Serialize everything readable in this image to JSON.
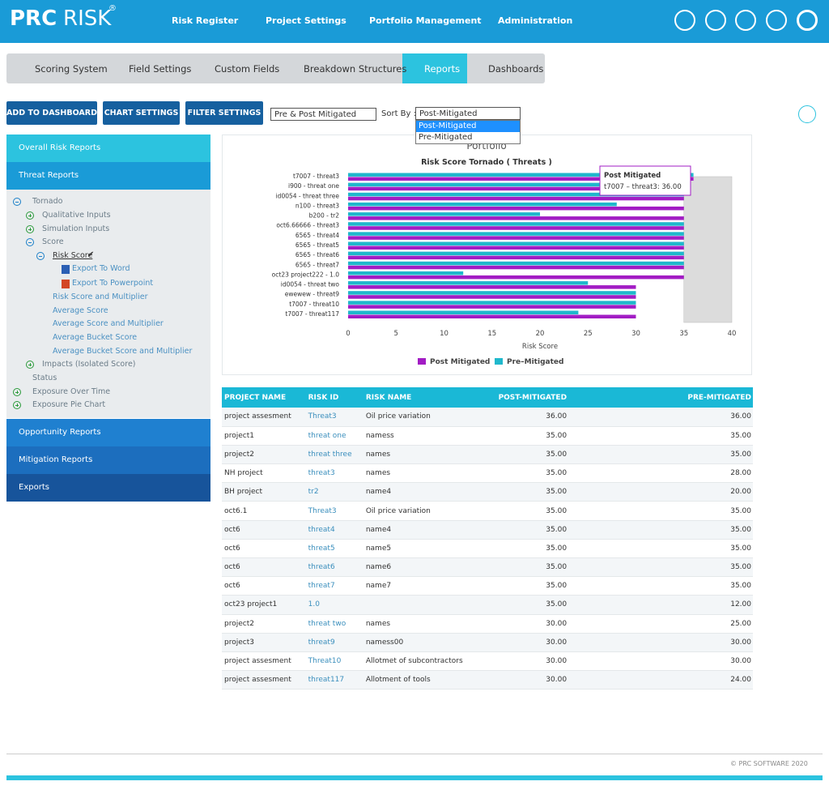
{
  "header": {
    "logo_a": "PRC",
    "logo_b": "RISK",
    "logo_mark": "®",
    "nav": [
      "Risk Register",
      "Project Settings",
      "Portfolio Management",
      "Administration"
    ]
  },
  "tabs": [
    "Scoring System",
    "Field Settings",
    "Custom Fields",
    "Breakdown Structures",
    "Reports",
    "Dashboards"
  ],
  "toolbar": {
    "buttons": [
      "ADD TO DASHBOARD",
      "CHART SETTINGS",
      "FILTER SETTINGS"
    ],
    "mode_select": "Pre & Post Mitigated",
    "sort_label": "Sort By :",
    "sort_select": "Post-Mitigated",
    "sort_options": [
      "Post-Mitigated",
      "Pre-Mitigated"
    ]
  },
  "sidebar": {
    "sections_top": [
      "Overall Risk Reports",
      "Threat Reports"
    ],
    "tree": [
      "Tornado",
      "Qualitative Inputs",
      "Simulation Inputs",
      "Score",
      "Risk Score",
      "Export To Word",
      "Export To Powerpoint",
      "Risk Score and Multiplier",
      "Average Score",
      "Average Score and Multiplier",
      "Average Bucket Score",
      "Average Bucket Score and Multiplier",
      "Impacts (Isolated Score)",
      "Status",
      "Exposure Over Time",
      "Exposure Pie Chart"
    ],
    "sections_bottom": [
      "Opportunity Reports",
      "Mitigation Reports",
      "Exports"
    ]
  },
  "chart_data": {
    "type": "hbar",
    "subtitle": "Portfolio",
    "title": "Risk Score Tornado ( Threats )",
    "x_label": "Risk Score",
    "categories": [
      "t7007 - threat3",
      "i900 - threat one",
      "id0054 - threat three",
      "n100 - threat3",
      "b200 - tr2",
      "oct6.66666 - threat3",
      "6565 - threat4",
      "6565 - threat5",
      "6565 - threat6",
      "6565 - threat7",
      "oct23 project222 - 1.0",
      "id0054 - threat two",
      "ewewew - threat9",
      "t7007 - threat10",
      "t7007 - threat117"
    ],
    "series": [
      {
        "name": "Post Mitigated",
        "color": "#a21cc4",
        "values": [
          36,
          35,
          35,
          35,
          35,
          35,
          35,
          35,
          35,
          35,
          35,
          30,
          30,
          30,
          30
        ]
      },
      {
        "name": "Pre–Mitigated",
        "color": "#1fb8cc",
        "values": [
          36,
          35,
          35,
          28,
          20,
          35,
          35,
          35,
          35,
          35,
          12,
          25,
          30,
          30,
          24
        ]
      }
    ],
    "xlim": [
      0,
      40
    ],
    "xticks": [
      0,
      5,
      10,
      15,
      20,
      25,
      30,
      35,
      40
    ],
    "plot_band": {
      "from": 35,
      "to": 40,
      "color": "#dcdcdc"
    },
    "tooltip": {
      "title": "Post Mitigated",
      "text": "t7007 – threat3: 36.00"
    }
  },
  "table": {
    "columns": [
      "PROJECT NAME",
      "RISK ID",
      "RISK NAME",
      "POST-MITIGATED",
      "PRE-MITIGATED"
    ],
    "rows": [
      [
        "project assesment",
        "Threat3",
        "Oil price variation",
        "36.00",
        "36.00"
      ],
      [
        "project1",
        "threat one",
        "namess",
        "35.00",
        "35.00"
      ],
      [
        "project2",
        "threat three",
        "names",
        "35.00",
        "35.00"
      ],
      [
        "NH project",
        "threat3",
        "names",
        "35.00",
        "28.00"
      ],
      [
        "BH project",
        "tr2",
        "name4",
        "35.00",
        "20.00"
      ],
      [
        "oct6.1",
        "Threat3",
        "Oil price variation",
        "35.00",
        "35.00"
      ],
      [
        "oct6",
        "threat4",
        "name4",
        "35.00",
        "35.00"
      ],
      [
        "oct6",
        "threat5",
        "name5",
        "35.00",
        "35.00"
      ],
      [
        "oct6",
        "threat6",
        "name6",
        "35.00",
        "35.00"
      ],
      [
        "oct6",
        "threat7",
        "name7",
        "35.00",
        "35.00"
      ],
      [
        "oct23 project1",
        "1.0",
        "",
        "35.00",
        "12.00"
      ],
      [
        "project2",
        "threat two",
        "names",
        "30.00",
        "25.00"
      ],
      [
        "project3",
        "threat9",
        "namess00",
        "30.00",
        "30.00"
      ],
      [
        "project assesment",
        "Threat10",
        "Allotmet of subcontractors",
        "30.00",
        "30.00"
      ],
      [
        "project assesment",
        "threat117",
        "Allotment of tools",
        "30.00",
        "24.00"
      ]
    ]
  },
  "footer": {
    "copyright": "© PRC SOFTWARE 2020"
  }
}
